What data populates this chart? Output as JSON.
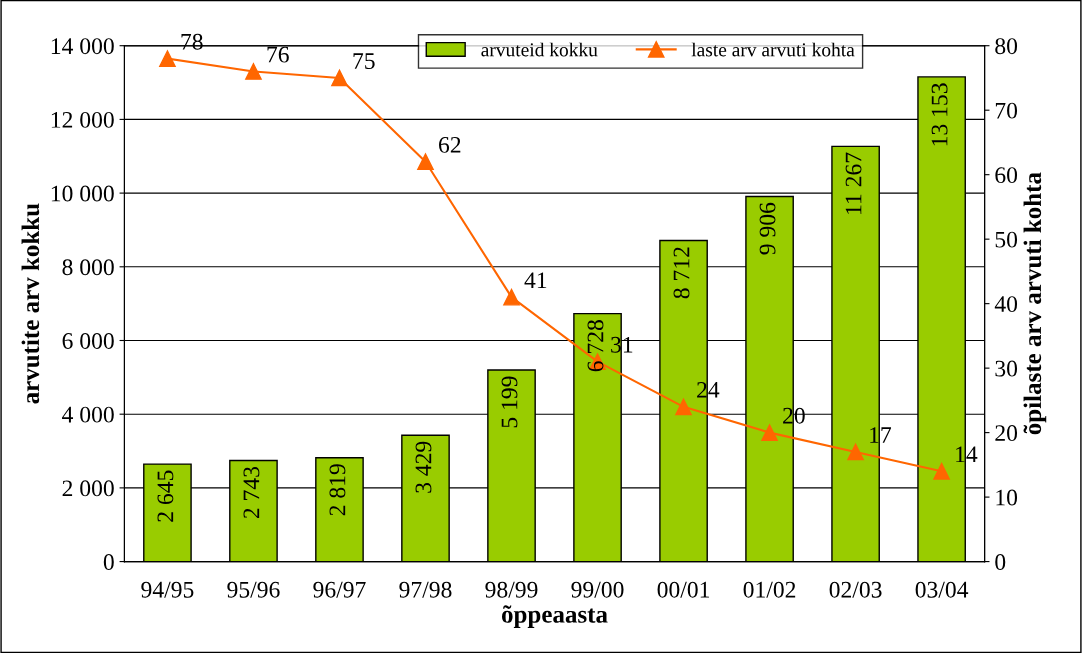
{
  "chart_data": {
    "type": "bar",
    "xlabel": "õppeaasta",
    "ylabel": "arvutite arv kokku",
    "y2label": "õpilaste arv arvuti kohta",
    "categories": [
      "94/95",
      "95/96",
      "96/97",
      "97/98",
      "98/99",
      "99/00",
      "00/01",
      "01/02",
      "02/03",
      "03/04"
    ],
    "series": [
      {
        "name": "arvuteid kokku",
        "color": "#99cc00",
        "values": [
          2645,
          2743,
          2819,
          3429,
          5199,
          6728,
          8712,
          9906,
          11267,
          13153
        ],
        "value_labels": [
          "2 645",
          "2 743",
          "2 819",
          "3 429",
          "5 199",
          "6 728",
          "8 712",
          "9 906",
          "11 267",
          "13 153"
        ]
      },
      {
        "name": "laste arv arvuti kohta",
        "type": "line",
        "axis": "y2",
        "color": "#ff6600",
        "marker": "triangle",
        "values": [
          78,
          76,
          75,
          62,
          41,
          31,
          24,
          20,
          17,
          14
        ],
        "value_labels": [
          "78",
          "76",
          "75",
          "62",
          "41",
          "31",
          "24",
          "20",
          "17",
          "14"
        ]
      }
    ],
    "ylim": [
      0,
      14000
    ],
    "yticks": [
      {
        "value": 0,
        "label": "0"
      },
      {
        "value": 2000,
        "label": "2 000"
      },
      {
        "value": 4000,
        "label": "4 000"
      },
      {
        "value": 6000,
        "label": "6 000"
      },
      {
        "value": 8000,
        "label": "8 000"
      },
      {
        "value": 10000,
        "label": "10 000"
      },
      {
        "value": 12000,
        "label": "12 000"
      },
      {
        "value": 14000,
        "label": "14 000"
      }
    ],
    "y2lim": [
      0,
      80
    ],
    "y2ticks": [
      0,
      10,
      20,
      30,
      40,
      50,
      60,
      70,
      80
    ],
    "grid": "y",
    "legend": "top"
  }
}
